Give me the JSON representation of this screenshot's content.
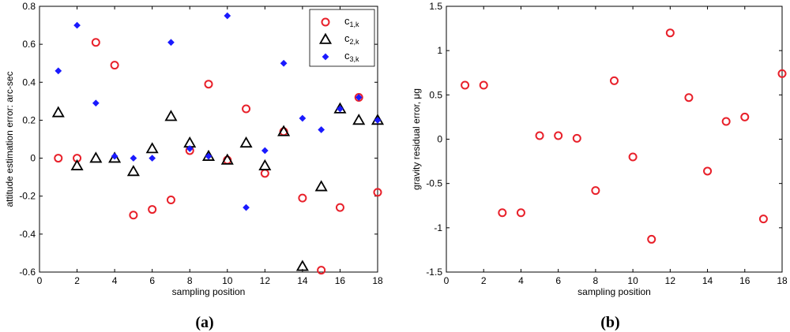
{
  "chart_data": [
    {
      "type": "scatter",
      "panel_label": "a",
      "xlabel": "sampling position",
      "ylabel": "attitude estimation error: arc-sec",
      "xlim": [
        0,
        18
      ],
      "ylim": [
        -0.6,
        0.8
      ],
      "xticks": [
        0,
        2,
        4,
        6,
        8,
        10,
        12,
        14,
        16,
        18
      ],
      "yticks": [
        -0.6,
        -0.4,
        -0.2,
        0,
        0.2,
        0.4,
        0.6,
        0.8
      ],
      "xtick_labels": [
        "0",
        "2",
        "4",
        "6",
        "8",
        "10",
        "12",
        "14",
        "16",
        "18"
      ],
      "ytick_labels": [
        "-0.6",
        "-0.4",
        "-0.2",
        "0",
        "0.2",
        "0.4",
        "0.6",
        "0.8"
      ],
      "grid": false,
      "legend_position": "top-right",
      "x": [
        1,
        2,
        3,
        4,
        5,
        6,
        7,
        8,
        9,
        10,
        11,
        12,
        13,
        14,
        15,
        16,
        17,
        18
      ],
      "series": [
        {
          "name": "c",
          "sub": "1,k",
          "marker": "circle",
          "color": "#e8202a",
          "values": [
            0.0,
            0.0,
            0.61,
            0.49,
            -0.3,
            -0.27,
            -0.22,
            0.04,
            0.39,
            -0.01,
            0.26,
            -0.08,
            0.14,
            -0.21,
            -0.59,
            -0.26,
            0.32,
            -0.18
          ]
        },
        {
          "name": "c",
          "sub": "2,k",
          "marker": "triangle",
          "color": "#000000",
          "values": [
            0.24,
            -0.04,
            0.0,
            0.0,
            -0.07,
            0.05,
            0.22,
            0.08,
            0.01,
            -0.01,
            0.08,
            -0.04,
            0.14,
            -0.57,
            -0.15,
            0.26,
            0.2,
            0.2
          ]
        },
        {
          "name": "c",
          "sub": "3,k",
          "marker": "diamond",
          "color": "#1a1aff",
          "values": [
            0.46,
            0.7,
            0.29,
            0.01,
            0.0,
            0.0,
            0.61,
            0.05,
            0.01,
            0.75,
            -0.26,
            0.04,
            0.5,
            0.21,
            0.15,
            0.26,
            0.32,
            0.2
          ]
        }
      ]
    },
    {
      "type": "scatter",
      "panel_label": "b",
      "xlabel": "sampling position",
      "ylabel": "gravity residual error, μg",
      "xlim": [
        0,
        18
      ],
      "ylim": [
        -1.5,
        1.5
      ],
      "xticks": [
        0,
        2,
        4,
        6,
        8,
        10,
        12,
        14,
        16,
        18
      ],
      "yticks": [
        -1.5,
        -1,
        -0.5,
        0,
        0.5,
        1,
        1.5
      ],
      "xtick_labels": [
        "0",
        "2",
        "4",
        "6",
        "8",
        "10",
        "12",
        "14",
        "16",
        "18"
      ],
      "ytick_labels": [
        "-1.5",
        "-1",
        "-0.5",
        "0",
        "0.5",
        "1",
        "1.5"
      ],
      "grid": false,
      "x": [
        1,
        2,
        3,
        4,
        5,
        6,
        7,
        8,
        9,
        10,
        11,
        12,
        13,
        14,
        15,
        16,
        17,
        18
      ],
      "series": [
        {
          "marker": "circle",
          "color": "#e8202a",
          "values": [
            0.61,
            0.61,
            -0.83,
            -0.83,
            0.04,
            0.04,
            0.01,
            -0.58,
            0.66,
            -0.2,
            -1.13,
            1.2,
            0.47,
            -0.36,
            0.2,
            0.25,
            -0.9,
            0.74
          ]
        }
      ]
    }
  ]
}
